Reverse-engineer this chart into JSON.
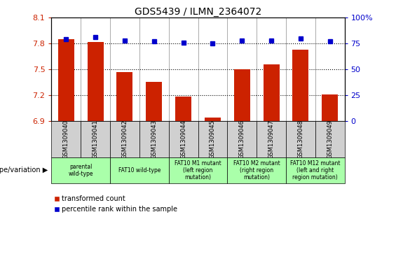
{
  "title": "GDS5439 / ILMN_2364072",
  "samples": [
    "GSM1309040",
    "GSM1309041",
    "GSM1309042",
    "GSM1309043",
    "GSM1309044",
    "GSM1309045",
    "GSM1309046",
    "GSM1309047",
    "GSM1309048",
    "GSM1309049"
  ],
  "red_values": [
    7.85,
    7.82,
    7.47,
    7.35,
    7.18,
    6.94,
    7.5,
    7.56,
    7.73,
    7.21
  ],
  "blue_values": [
    79,
    81,
    78,
    77,
    76,
    75,
    78,
    78,
    80,
    77
  ],
  "ylim_left": [
    6.9,
    8.1
  ],
  "ylim_right": [
    0,
    100
  ],
  "yticks_left": [
    6.9,
    7.2,
    7.5,
    7.8,
    8.1
  ],
  "yticks_right": [
    0,
    25,
    50,
    75,
    100
  ],
  "ytick_labels_left": [
    "6.9",
    "7.2",
    "7.5",
    "7.8",
    "8.1"
  ],
  "ytick_labels_right": [
    "0",
    "25",
    "50",
    "75",
    "100%"
  ],
  "hlines": [
    7.8,
    7.5,
    7.2
  ],
  "bar_color": "#cc2200",
  "dot_color": "#0000cc",
  "bar_width": 0.55,
  "legend_red": "transformed count",
  "legend_blue": "percentile rank within the sample",
  "genotype_label": "genotype/variation",
  "cell_bg": "#d0d0d0",
  "group_bg": "#aaffaa",
  "groups": [
    {
      "label": "parental\nwild-type",
      "span": [
        0,
        2
      ]
    },
    {
      "label": "FAT10 wild-type",
      "span": [
        2,
        4
      ]
    },
    {
      "label": "FAT10 M1 mutant\n(left region\nmutation)",
      "span": [
        4,
        6
      ]
    },
    {
      "label": "FAT10 M2 mutant\n(right region\nmutation)",
      "span": [
        6,
        8
      ]
    },
    {
      "label": "FAT10 M12 mutant\n(left and right\nregion mutation)",
      "span": [
        8,
        10
      ]
    }
  ]
}
